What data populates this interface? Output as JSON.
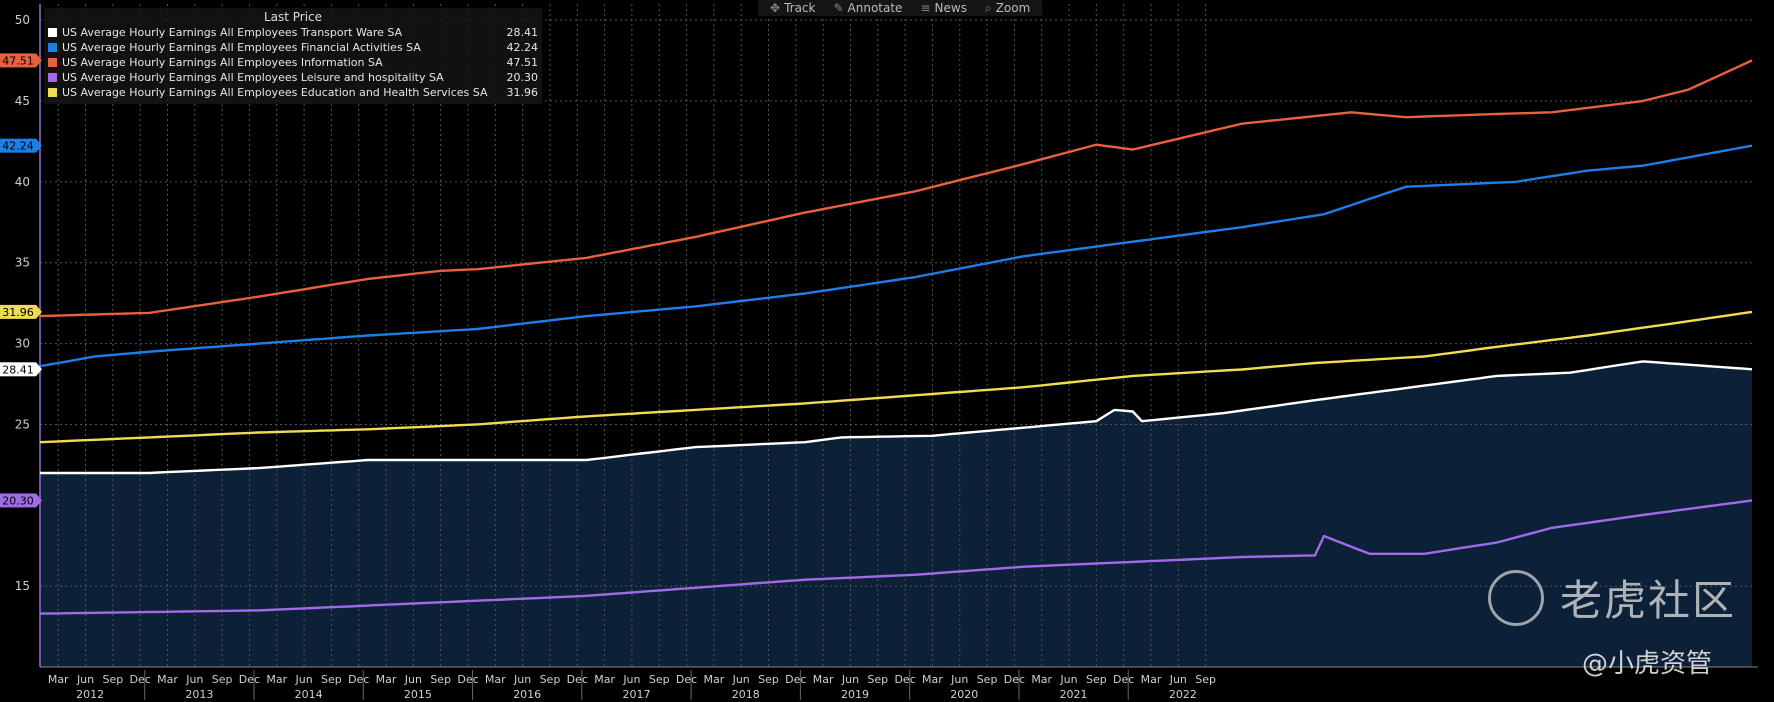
{
  "toolbar": {
    "track": "Track",
    "annotate": "Annotate",
    "news": "News",
    "zoom": "Zoom"
  },
  "legend": {
    "title": "Last Price"
  },
  "colors": {
    "background": "#000000",
    "area_fill": "#0c2038",
    "grid": "#555555",
    "axis": "#9a6ad8"
  },
  "watermark": {
    "main": "老虎社区",
    "sub": "@小虎资管"
  },
  "chart_data": {
    "type": "line",
    "ylim": [
      10,
      51
    ],
    "yticks": [
      15,
      25,
      30,
      35,
      40,
      45,
      50
    ],
    "month_labels": [
      "Mar",
      "Jun",
      "Sep",
      "Dec",
      "Mar",
      "Jun",
      "Sep",
      "Dec",
      "Mar",
      "Jun",
      "Sep",
      "Dec",
      "Mar",
      "Jun",
      "Sep",
      "Dec",
      "Mar",
      "Jun",
      "Sep",
      "Dec",
      "Mar",
      "Jun",
      "Sep",
      "Dec",
      "Mar",
      "Jun",
      "Sep",
      "Dec",
      "Mar",
      "Jun",
      "Sep",
      "Dec",
      "Mar",
      "Jun",
      "Sep",
      "Dec",
      "Mar",
      "Jun",
      "Sep",
      "Dec",
      "Mar",
      "Jun",
      "Sep"
    ],
    "year_labels": [
      "2012",
      "2013",
      "2014",
      "2015",
      "2016",
      "2017",
      "2018",
      "2019",
      "2020",
      "2021",
      "2022"
    ],
    "x_start": "2012-01",
    "x_end": "2022-09",
    "series": [
      {
        "name": "US Average Hourly Earnings All Employees Transport Ware SA",
        "last": "28.41",
        "color": "#ffffff",
        "area": true,
        "points": [
          [
            0,
            22.0
          ],
          [
            12,
            22.0
          ],
          [
            24,
            22.3
          ],
          [
            36,
            22.8
          ],
          [
            48,
            22.8
          ],
          [
            60,
            22.8
          ],
          [
            72,
            23.6
          ],
          [
            84,
            23.9
          ],
          [
            88,
            24.2
          ],
          [
            98,
            24.3
          ],
          [
            108,
            24.8
          ],
          [
            116,
            25.2
          ],
          [
            118,
            25.9
          ],
          [
            120,
            25.8
          ],
          [
            121,
            25.2
          ],
          [
            130,
            25.7
          ],
          [
            140,
            26.5
          ],
          [
            148,
            27.1
          ],
          [
            160,
            28.0
          ],
          [
            168,
            28.2
          ],
          [
            176,
            28.9
          ],
          [
            188,
            28.41
          ]
        ]
      },
      {
        "name": "US Average Hourly Earnings All Employees Financial Activities SA",
        "last": "42.24",
        "color": "#1e7ee8",
        "area": false,
        "points": [
          [
            0,
            28.6
          ],
          [
            6,
            29.2
          ],
          [
            12,
            29.5
          ],
          [
            24,
            30.0
          ],
          [
            36,
            30.5
          ],
          [
            48,
            30.9
          ],
          [
            60,
            31.7
          ],
          [
            72,
            32.3
          ],
          [
            84,
            33.1
          ],
          [
            96,
            34.1
          ],
          [
            108,
            35.4
          ],
          [
            120,
            36.3
          ],
          [
            132,
            37.2
          ],
          [
            141,
            38.0
          ],
          [
            150,
            39.7
          ],
          [
            162,
            40.0
          ],
          [
            170,
            40.7
          ],
          [
            176,
            41.0
          ],
          [
            188,
            42.24
          ]
        ]
      },
      {
        "name": "US Average Hourly Earnings All Employees Information SA",
        "last": "47.51",
        "color": "#e8603c",
        "area": false,
        "points": [
          [
            0,
            31.7
          ],
          [
            12,
            31.9
          ],
          [
            24,
            32.9
          ],
          [
            36,
            34.0
          ],
          [
            44,
            34.5
          ],
          [
            48,
            34.6
          ],
          [
            60,
            35.3
          ],
          [
            72,
            36.6
          ],
          [
            84,
            38.1
          ],
          [
            96,
            39.4
          ],
          [
            108,
            41.1
          ],
          [
            116,
            42.3
          ],
          [
            120,
            42.0
          ],
          [
            132,
            43.6
          ],
          [
            144,
            44.3
          ],
          [
            150,
            44.0
          ],
          [
            160,
            44.2
          ],
          [
            166,
            44.3
          ],
          [
            176,
            45.0
          ],
          [
            181,
            45.7
          ],
          [
            188,
            47.51
          ]
        ]
      },
      {
        "name": "US Average Hourly Earnings All Employees Leisure and hospitality SA",
        "last": "20.30",
        "color": "#a26ae8",
        "area": false,
        "points": [
          [
            0,
            13.3
          ],
          [
            12,
            13.4
          ],
          [
            24,
            13.5
          ],
          [
            36,
            13.8
          ],
          [
            48,
            14.1
          ],
          [
            60,
            14.4
          ],
          [
            72,
            14.9
          ],
          [
            84,
            15.4
          ],
          [
            96,
            15.7
          ],
          [
            108,
            16.2
          ],
          [
            120,
            16.5
          ],
          [
            132,
            16.8
          ],
          [
            140,
            16.9
          ],
          [
            141,
            18.1
          ],
          [
            146,
            17.0
          ],
          [
            152,
            17.0
          ],
          [
            160,
            17.7
          ],
          [
            166,
            18.6
          ],
          [
            176,
            19.4
          ],
          [
            188,
            20.3
          ]
        ]
      },
      {
        "name": "US Average Hourly Earnings All Employees Education and Health Services SA",
        "last": "31.96",
        "color": "#f0dc50",
        "area": false,
        "points": [
          [
            0,
            23.9
          ],
          [
            12,
            24.2
          ],
          [
            24,
            24.5
          ],
          [
            36,
            24.7
          ],
          [
            48,
            25.0
          ],
          [
            60,
            25.5
          ],
          [
            72,
            25.9
          ],
          [
            84,
            26.3
          ],
          [
            96,
            26.8
          ],
          [
            108,
            27.3
          ],
          [
            120,
            28.0
          ],
          [
            132,
            28.4
          ],
          [
            140,
            28.8
          ],
          [
            152,
            29.2
          ],
          [
            160,
            29.8
          ],
          [
            170,
            30.5
          ],
          [
            180,
            31.3
          ],
          [
            188,
            31.96
          ]
        ]
      }
    ]
  }
}
